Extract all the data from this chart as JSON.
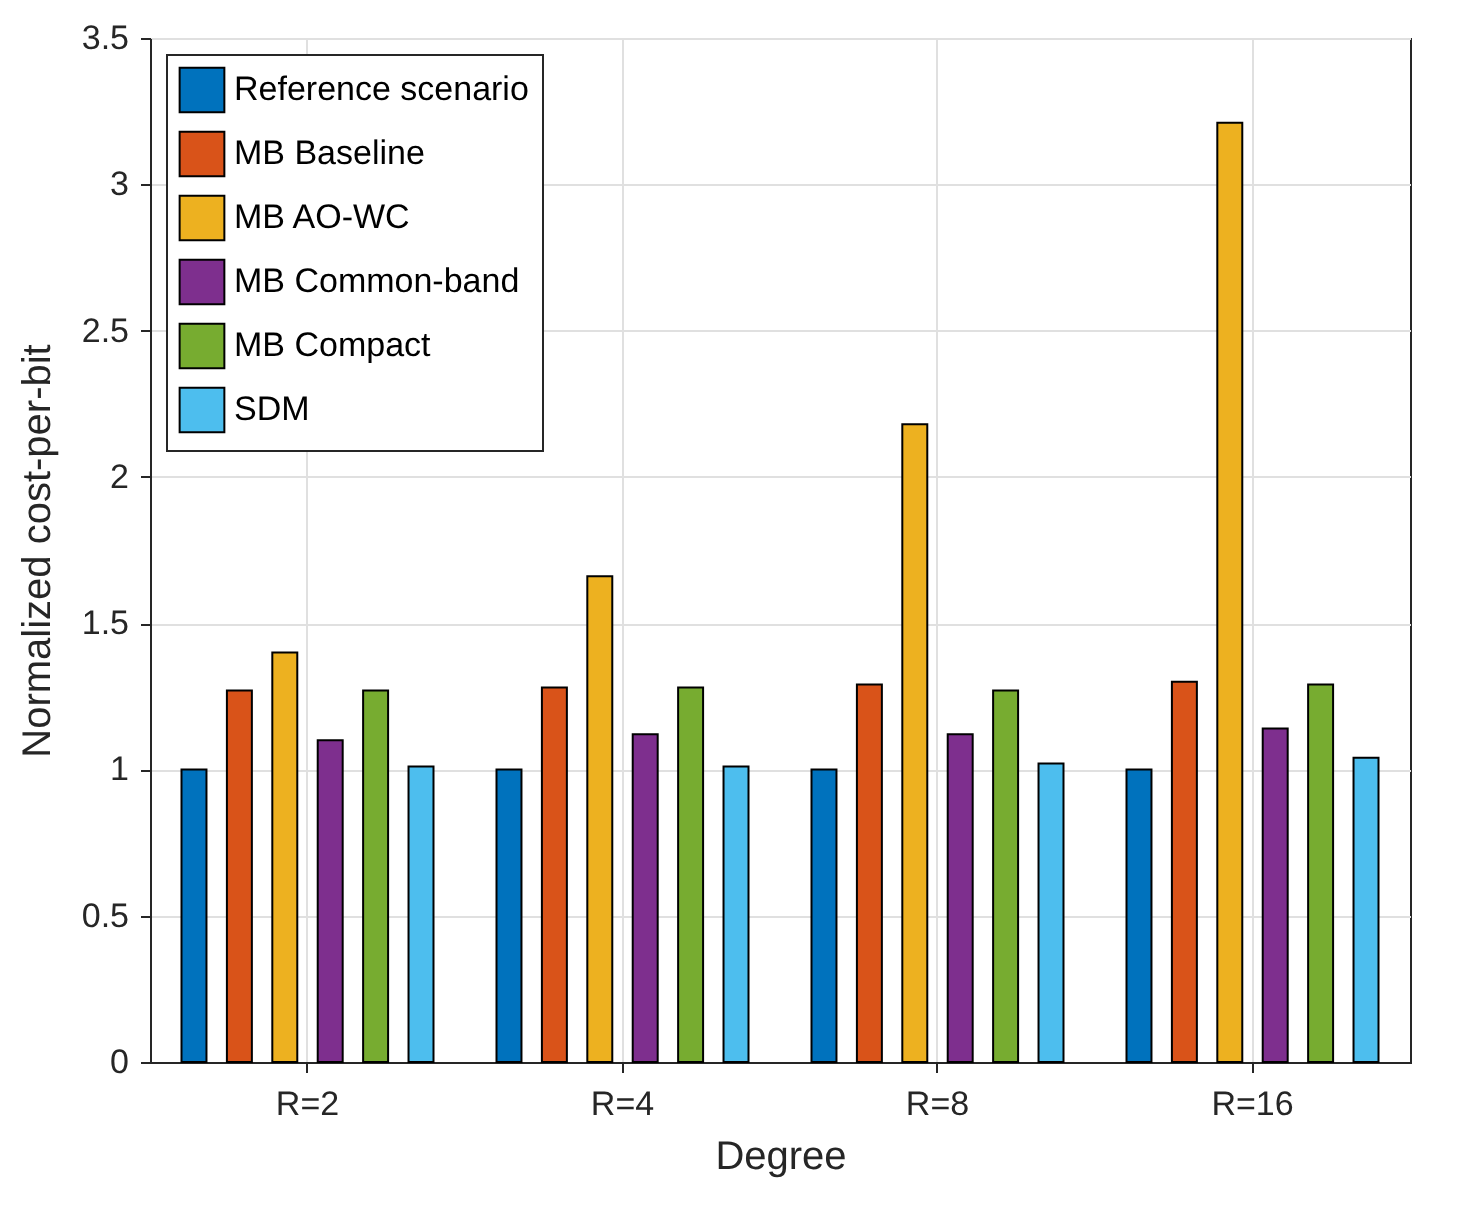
{
  "chart_data": {
    "type": "bar",
    "xlabel": "Degree",
    "ylabel": "Normalized cost-per-bit",
    "categories": [
      "R=2",
      "R=4",
      "R=8",
      "R=16"
    ],
    "series": [
      {
        "name": "Reference scenario",
        "color": "#0072bd",
        "values": [
          1.0,
          1.0,
          1.0,
          1.0
        ]
      },
      {
        "name": "MB Baseline",
        "color": "#d95319",
        "values": [
          1.27,
          1.28,
          1.29,
          1.3
        ]
      },
      {
        "name": "MB AO-WC",
        "color": "#edb120",
        "values": [
          1.4,
          1.66,
          2.18,
          3.21
        ]
      },
      {
        "name": "MB Common-band",
        "color": "#7e2f8e",
        "values": [
          1.1,
          1.12,
          1.12,
          1.14
        ]
      },
      {
        "name": "MB Compact",
        "color": "#77ac30",
        "values": [
          1.27,
          1.28,
          1.27,
          1.29
        ]
      },
      {
        "name": "SDM",
        "color": "#4dbeee",
        "values": [
          1.01,
          1.01,
          1.02,
          1.04
        ]
      }
    ],
    "ylim": [
      0,
      3.5
    ],
    "yticks": [
      0,
      0.5,
      1,
      1.5,
      2,
      2.5,
      3,
      3.5
    ],
    "grid": true,
    "legend": "top left"
  }
}
